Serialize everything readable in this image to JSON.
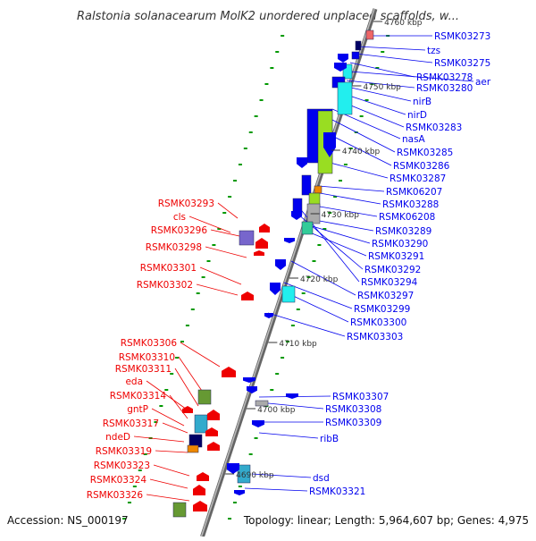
{
  "header": {
    "title": "Ralstonia solanacearum MolK2 unordered unplaced scaffolds, w..."
  },
  "footer": {
    "accession": "Accession: NS_000197",
    "summary": "Topology: linear; Length: 5,964,607 bp; Genes: 4,975"
  },
  "colors": {
    "plus_strand": "#0000ee",
    "minus_strand": "#ee0000",
    "backbone": "#888888",
    "tick_dots": "#009900",
    "lime": "#99dd22",
    "cyan": "#22eeee",
    "olive": "#669933",
    "navy": "#000066",
    "purple": "#7766cc",
    "orange": "#ee8800",
    "gray": "#aaaaaa",
    "pink": "#ee6666",
    "green": "#33cc99",
    "teal": "#33aacc"
  },
  "scale_labels": [
    {
      "text": "4760 kbp"
    },
    {
      "text": "4750 kbp"
    },
    {
      "text": "4740 kbp"
    },
    {
      "text": "4730 kbp"
    },
    {
      "text": "4720 kbp"
    },
    {
      "text": "4710 kbp"
    },
    {
      "text": "4700 kbp"
    },
    {
      "text": "4690 kbp"
    }
  ],
  "right_labels": [
    {
      "text": "RSMK03273"
    },
    {
      "text": "tzs"
    },
    {
      "text": "RSMK03275"
    },
    {
      "text": "RSMK03278"
    },
    {
      "text": "aer"
    },
    {
      "text": "RSMK03280"
    },
    {
      "text": "nirB"
    },
    {
      "text": "nirD"
    },
    {
      "text": "RSMK03283"
    },
    {
      "text": "nasA"
    },
    {
      "text": "RSMK03285"
    },
    {
      "text": "RSMK03286"
    },
    {
      "text": "RSMK03287"
    },
    {
      "text": "RSMK06207"
    },
    {
      "text": "RSMK03288"
    },
    {
      "text": "RSMK06208"
    },
    {
      "text": "RSMK03289"
    },
    {
      "text": "RSMK03290"
    },
    {
      "text": "RSMK03291"
    },
    {
      "text": "RSMK03292"
    },
    {
      "text": "RSMK03294"
    },
    {
      "text": "RSMK03297"
    },
    {
      "text": "RSMK03299"
    },
    {
      "text": "RSMK03300"
    },
    {
      "text": "RSMK03303"
    },
    {
      "text": "RSMK03307"
    },
    {
      "text": "RSMK03308"
    },
    {
      "text": "RSMK03309"
    },
    {
      "text": "ribB"
    },
    {
      "text": "dsd"
    },
    {
      "text": "RSMK03321"
    }
  ],
  "left_labels": [
    {
      "text": "RSMK03293"
    },
    {
      "text": "cls"
    },
    {
      "text": "RSMK03296"
    },
    {
      "text": "RSMK03298"
    },
    {
      "text": "RSMK03301"
    },
    {
      "text": "RSMK03302"
    },
    {
      "text": "RSMK03306"
    },
    {
      "text": "RSMK03310"
    },
    {
      "text": "RSMK03311"
    },
    {
      "text": "eda"
    },
    {
      "text": "RSMK03314"
    },
    {
      "text": "gntP"
    },
    {
      "text": "RSMK03317"
    },
    {
      "text": "ndeD"
    },
    {
      "text": "RSMK03319"
    },
    {
      "text": "RSMK03323"
    },
    {
      "text": "RSMK03324"
    },
    {
      "text": "RSMK03326"
    }
  ]
}
